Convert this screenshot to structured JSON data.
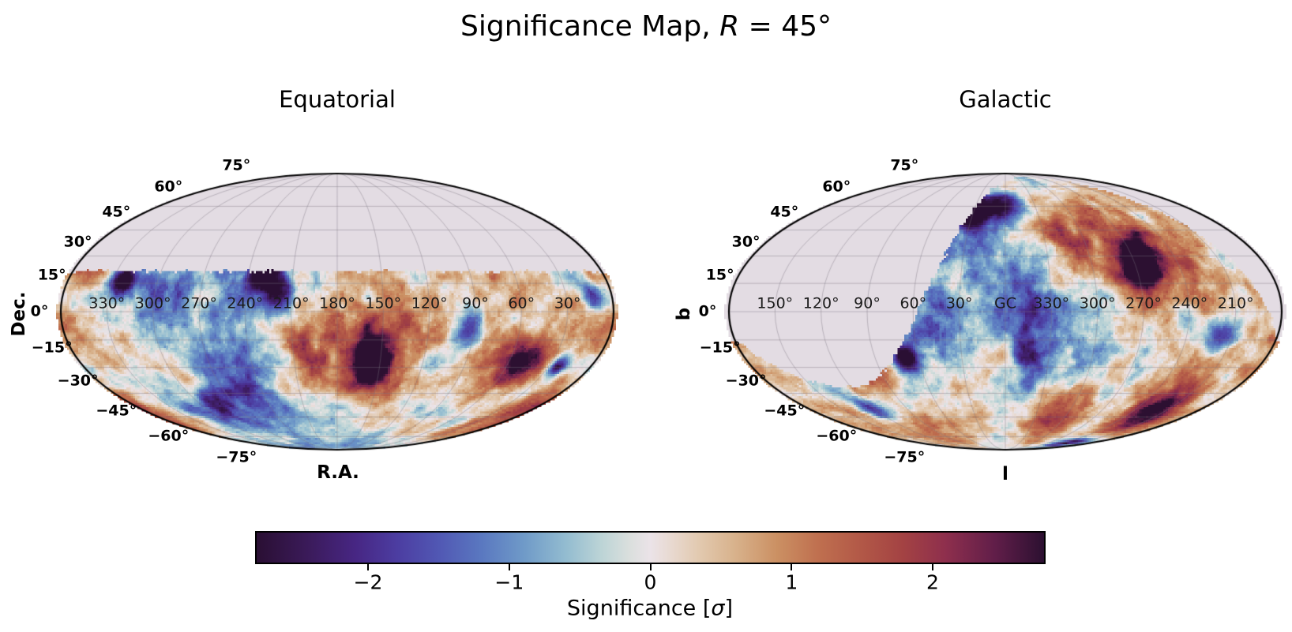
{
  "title": {
    "pre": "Significance Map, ",
    "math_var": "R",
    "post": " = 45°"
  },
  "panels": [
    {
      "id": "equatorial",
      "title": "Equatorial",
      "xlabel": "R.A.",
      "ylabel": "Dec.",
      "lon_ticks": [
        {
          "label": "330°",
          "value": 330
        },
        {
          "label": "300°",
          "value": 300
        },
        {
          "label": "270°",
          "value": 270
        },
        {
          "label": "240°",
          "value": 240
        },
        {
          "label": "210°",
          "value": 210
        },
        {
          "label": "180°",
          "value": 180
        },
        {
          "label": "150°",
          "value": 150
        },
        {
          "label": "120°",
          "value": 120
        },
        {
          "label": "90°",
          "value": 90
        },
        {
          "label": "60°",
          "value": 60
        },
        {
          "label": "30°",
          "value": 30
        }
      ],
      "lat_ticks": [
        {
          "label": "75°",
          "value": 75
        },
        {
          "label": "60°",
          "value": 60
        },
        {
          "label": "45°",
          "value": 45
        },
        {
          "label": "30°",
          "value": 30
        },
        {
          "label": "15°",
          "value": 15
        },
        {
          "label": "0°",
          "value": 0
        },
        {
          "label": "−15°",
          "value": -15
        },
        {
          "label": "−30°",
          "value": -30
        },
        {
          "label": "−45°",
          "value": -45
        },
        {
          "label": "−60°",
          "value": -60
        },
        {
          "label": "−75°",
          "value": -75
        }
      ]
    },
    {
      "id": "galactic",
      "title": "Galactic",
      "xlabel": "l",
      "ylabel": "b",
      "lon_ticks": [
        {
          "label": "150°",
          "value": 150
        },
        {
          "label": "120°",
          "value": 120
        },
        {
          "label": "90°",
          "value": 90
        },
        {
          "label": "60°",
          "value": 60
        },
        {
          "label": "30°",
          "value": 30
        },
        {
          "label": "GC",
          "value": 0
        },
        {
          "label": "330°",
          "value": -30
        },
        {
          "label": "300°",
          "value": -60
        },
        {
          "label": "270°",
          "value": -90
        },
        {
          "label": "240°",
          "value": -120
        },
        {
          "label": "210°",
          "value": -150
        }
      ],
      "lat_ticks": [
        {
          "label": "75°",
          "value": 75
        },
        {
          "label": "60°",
          "value": 60
        },
        {
          "label": "45°",
          "value": 45
        },
        {
          "label": "30°",
          "value": 30
        },
        {
          "label": "15°",
          "value": 15
        },
        {
          "label": "0°",
          "value": 0
        },
        {
          "label": "−15°",
          "value": -15
        },
        {
          "label": "−30°",
          "value": -30
        },
        {
          "label": "−45°",
          "value": -45
        },
        {
          "label": "−60°",
          "value": -60
        },
        {
          "label": "−75°",
          "value": -75
        }
      ]
    }
  ],
  "colorbar": {
    "label_pre": "Significance [",
    "label_sigma": "σ",
    "label_post": "]",
    "vmin": -2.8,
    "vmax": 2.8,
    "ticks": [
      {
        "label": "−2",
        "value": -2
      },
      {
        "label": "−1",
        "value": -1
      },
      {
        "label": "0",
        "value": 0
      },
      {
        "label": "1",
        "value": 1
      },
      {
        "label": "2",
        "value": 2
      }
    ]
  },
  "chart_data": {
    "type": "heatmap",
    "subtype": "all-sky significance map, Mollweide projection, two frames of the same field",
    "title": "Significance Map, R = 45°",
    "smoothing_radius_deg": 45,
    "value_label": "Significance [σ]",
    "value_range": [
      -2.8,
      2.8
    ],
    "colorbar_ticks": [
      -2,
      -1,
      0,
      1,
      2
    ],
    "colormap_name": "twilight_shifted-like diverging (dark purple → blue → white → red → dark maroon)",
    "colormap_stops": [
      [
        -2.8,
        "#2a0f33"
      ],
      [
        -2.45,
        "#3a1a58"
      ],
      [
        -2.1,
        "#472683"
      ],
      [
        -1.8,
        "#4c3da1"
      ],
      [
        -1.5,
        "#5158b4"
      ],
      [
        -1.2,
        "#5a78c0"
      ],
      [
        -0.9,
        "#6f9ac8"
      ],
      [
        -0.6,
        "#93bcd0"
      ],
      [
        -0.35,
        "#bcd4d6"
      ],
      [
        -0.15,
        "#dadfdd"
      ],
      [
        0,
        "#ebe3e8"
      ],
      [
        0.15,
        "#e8d9d0"
      ],
      [
        0.35,
        "#e2c9af"
      ],
      [
        0.6,
        "#d8b28c"
      ],
      [
        0.9,
        "#cb9063"
      ],
      [
        1.2,
        "#bf6f4f"
      ],
      [
        1.5,
        "#b25847"
      ],
      [
        1.8,
        "#a34243"
      ],
      [
        2.1,
        "#8e2f4d"
      ],
      [
        2.45,
        "#611e49"
      ],
      [
        2.8,
        "#2c1031"
      ]
    ],
    "mask": {
      "type": "declination-cut",
      "dec_cut_deg": 21.5,
      "description": "Sky with Dec above ~+22° is unobserved: light lavender region at top of Equatorial map and lens-shaped region on left/top of Galactic map",
      "color": "#e3dce3"
    },
    "panels": [
      {
        "name": "Equatorial",
        "xlabel": "R.A.",
        "ylabel": "Dec.",
        "lon_ticks_deg": [
          330,
          300,
          270,
          240,
          210,
          180,
          150,
          120,
          90,
          60,
          30
        ],
        "lat_ticks_deg": [
          75,
          60,
          45,
          30,
          15,
          0,
          -15,
          -30,
          -45,
          -60,
          -75
        ],
        "lon_direction": "R.A. increases to the left, 180° at center"
      },
      {
        "name": "Galactic",
        "xlabel": "l",
        "ylabel": "b",
        "lon_tick_labels": [
          "150°",
          "120°",
          "90°",
          "60°",
          "30°",
          "GC",
          "330°",
          "300°",
          "270°",
          "240°",
          "210°"
        ],
        "lat_ticks_deg": [
          75,
          60,
          45,
          30,
          15,
          0,
          -15,
          -30,
          -45,
          -60,
          -75
        ],
        "lon_direction": "l increases to the left, Galactic Center at center"
      }
    ],
    "features": [
      {
        "frame": "equatorial",
        "lon": 60,
        "lat": -20,
        "amp": 1.1,
        "r": 45,
        "note": "broad positive lobe, right half of Equatorial map"
      },
      {
        "frame": "equatorial",
        "lon": 270,
        "lat": 0,
        "amp": -1.0,
        "r": 45,
        "note": "broad negative lobe, left half of Equatorial map"
      },
      {
        "frame": "equatorial",
        "lon": 323,
        "lat": 17,
        "amp": -3.0,
        "r": 8,
        "note": "deep purple deficit near R.A. 325°, Dec +17°"
      },
      {
        "frame": "equatorial",
        "lon": 300,
        "lat": 3,
        "amp": -1.2,
        "r": 16,
        "note": "blue region upper left"
      },
      {
        "frame": "equatorial",
        "lon": 157,
        "lat": -27,
        "amp": 3.2,
        "r": 10,
        "note": "dark maroon excess core near R.A. 157°, Dec −27°"
      },
      {
        "frame": "equatorial",
        "lon": 150,
        "lat": -16,
        "amp": 1.6,
        "r": 22,
        "note": "red halo around excess core"
      },
      {
        "frame": "equatorial",
        "lon": 220,
        "lat": 8,
        "amp": -2.0,
        "r": 13,
        "note": "dark blue patch near R.A. 220°, just below mask edge"
      },
      {
        "frame": "equatorial",
        "lon": 95,
        "lat": -8,
        "amp": -2.0,
        "r": 11,
        "note": "blue patch near R.A. 95° (purple at right edge of Galactic map)"
      },
      {
        "frame": "equatorial",
        "lon": 45,
        "lat": -28,
        "amp": 1.8,
        "r": 16,
        "note": "red region lower right of Equatorial map"
      },
      {
        "frame": "equatorial",
        "lon": 24,
        "lat": -29,
        "amp": -2.6,
        "r": 6,
        "note": "small violet spot embedded in red region"
      },
      {
        "frame": "equatorial",
        "lon": 12,
        "lat": 8,
        "amp": -2.2,
        "r": 7,
        "note": "purple patch at right edge near equator"
      },
      {
        "frame": "equatorial",
        "lon": 285,
        "lat": -50,
        "amp": -2.3,
        "r": 10,
        "note": "blue-purple streak bottom left"
      },
      {
        "frame": "equatorial",
        "lon": 255,
        "lat": -45,
        "amp": -1.4,
        "r": 14,
        "note": "blue streak bottom left"
      },
      {
        "frame": "equatorial",
        "lon": 5,
        "lat": -55,
        "amp": 1.4,
        "r": 16,
        "note": "red area bottom right"
      },
      {
        "frame": "galactic",
        "lon": 275,
        "lat": 18,
        "amp": 1.7,
        "r": 20,
        "note": "dark maroon excess around l 270°, b +15° (right of Galactic map)"
      },
      {
        "frame": "galactic",
        "lon": 30,
        "lat": 55,
        "amp": -2.4,
        "r": 9,
        "note": "deep purple blob along mask edge, top center of Galactic map"
      },
      {
        "frame": "galactic",
        "lon": 213,
        "lat": -13,
        "amp": -1.5,
        "r": 8,
        "note": "purple patch at right edge of Galactic map"
      },
      {
        "frame": "galactic",
        "lon": 95,
        "lat": -35,
        "amp": 1.9,
        "r": 13,
        "note": "red band along lower-left edge of Galactic map"
      },
      {
        "frame": "galactic",
        "lon": 305,
        "lat": 50,
        "amp": 1.2,
        "r": 18,
        "note": "broad red upper right of Galactic map"
      }
    ],
    "noise_octaves": [
      [
        2.6,
        1.0
      ],
      [
        5.2,
        0.7
      ],
      [
        10.5,
        0.45
      ],
      [
        21,
        0.28
      ],
      [
        46,
        0.2
      ]
    ],
    "grid": {
      "parallels_step_deg": 15,
      "meridians_step_deg": 30
    }
  }
}
